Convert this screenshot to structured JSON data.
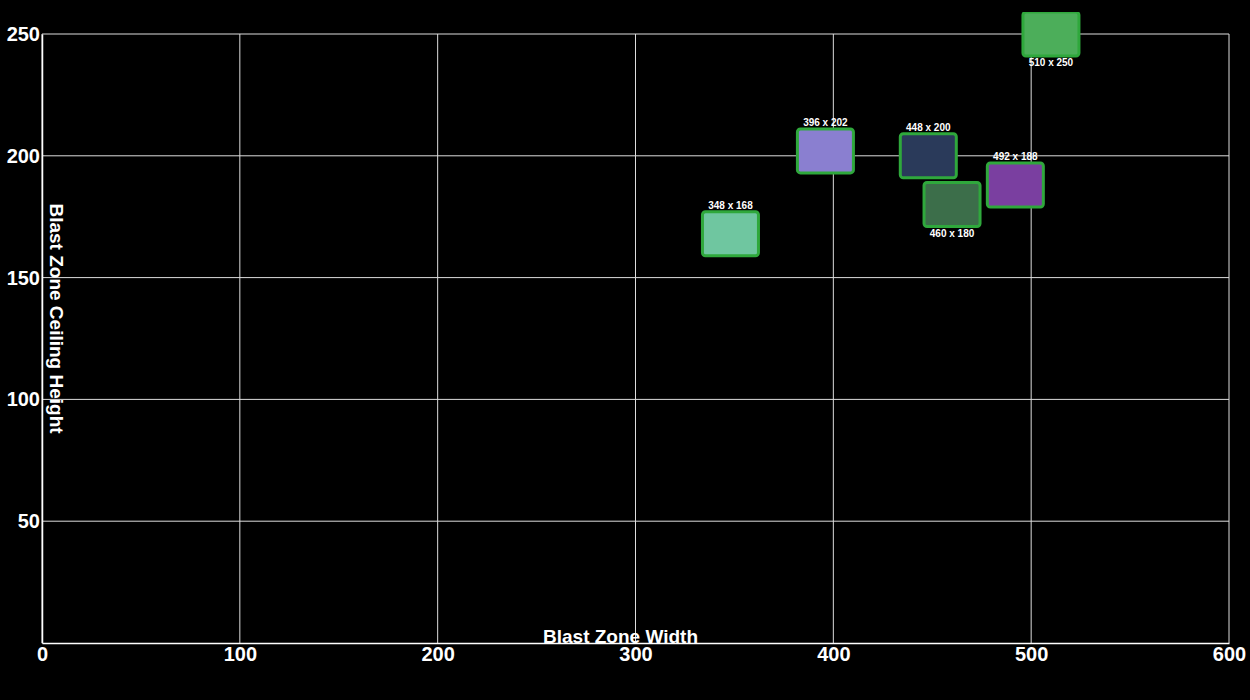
{
  "chart_data": {
    "type": "scatter",
    "x_label": "Blast Zone Width",
    "y_label": "Blast Zone Ceiling Height",
    "x": [
      348,
      396,
      448,
      460,
      492,
      510
    ],
    "values": [
      168,
      202,
      200,
      180,
      188,
      250
    ],
    "data_labels": true,
    "value_labels": [
      "348 x 168",
      "396 x 202",
      "448 x 200",
      "460 x 180",
      "492 x 188",
      "510 x 250"
    ],
    "colors": [
      "#6fc6a0",
      "#8a7fd0",
      "#2a3a5a",
      "#3c6e4a",
      "#7a3fa0",
      "#4cae5a"
    ],
    "marker": "square",
    "xlim": [
      0,
      600
    ],
    "xticks": [
      0,
      100,
      200,
      300,
      400,
      500,
      600
    ],
    "ylim": [
      0,
      250
    ],
    "yticks": [
      50,
      100,
      150,
      200,
      250
    ],
    "grid": true
  }
}
